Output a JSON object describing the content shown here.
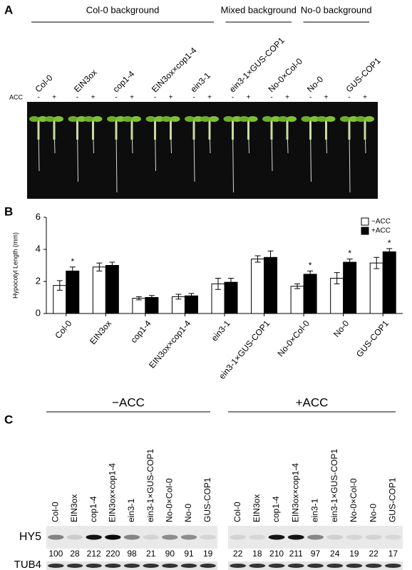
{
  "panel_a": {
    "label": "A",
    "groups": [
      "Col-0 background",
      "Mixed background",
      "No-0 background"
    ],
    "genotypes": [
      "Col-0",
      "EIN3ox",
      "cop1-4",
      "EIN3ox×cop1-4",
      "ein3-1",
      "ein3-1×GUS-COP1",
      "No-0×Col-0",
      "No-0",
      "GUS-COP1"
    ],
    "treatment_label": "ACC",
    "treatments": [
      "-",
      "+"
    ]
  },
  "chart_data": {
    "type": "bar",
    "panel_label": "B",
    "y_label": "Hypocotyl Length (mm)",
    "categories": [
      "Col-0",
      "EIN3ox",
      "cop1-4",
      "EIN3ox×cop1-4",
      "ein3-1",
      "ein3-1×GUS-COP1",
      "No-0×Col-0",
      "No-0",
      "GUS-COP1"
    ],
    "series": [
      {
        "name": "−ACC",
        "color": "#ffffff",
        "values": [
          1.75,
          2.9,
          0.95,
          1.05,
          1.85,
          3.4,
          1.7,
          2.2,
          3.15
        ],
        "errors": [
          0.3,
          0.25,
          0.1,
          0.15,
          0.35,
          0.2,
          0.15,
          0.35,
          0.35
        ]
      },
      {
        "name": "+ACC",
        "color": "#000000",
        "values": [
          2.65,
          3.0,
          1.0,
          1.1,
          1.95,
          3.5,
          2.45,
          3.2,
          3.85
        ],
        "errors": [
          0.25,
          0.2,
          0.12,
          0.15,
          0.25,
          0.4,
          0.2,
          0.2,
          0.2
        ],
        "significance": [
          "*",
          null,
          null,
          null,
          null,
          null,
          "*",
          "*",
          "*"
        ]
      }
    ],
    "ylim": [
      0,
      6
    ],
    "yticks": [
      0,
      2,
      4,
      6
    ],
    "legend": "top-right"
  },
  "panel_c": {
    "label": "C",
    "conditions": [
      {
        "name": "−ACC",
        "hy5": [
          100,
          28,
          212,
          220,
          98,
          21,
          90,
          91,
          19
        ]
      },
      {
        "name": "+ACC",
        "hy5": [
          22,
          18,
          210,
          211,
          97,
          24,
          19,
          22,
          17
        ]
      }
    ],
    "lanes": [
      "Col-0",
      "EIN3ox",
      "cop1-4",
      "EIN3ox×cop1-4",
      "ein3-1",
      "ein3-1×GUS-COP1",
      "No-0×Col-0",
      "No-0",
      "GUS-COP1"
    ],
    "rows": [
      "HY5",
      "TUB4"
    ]
  }
}
